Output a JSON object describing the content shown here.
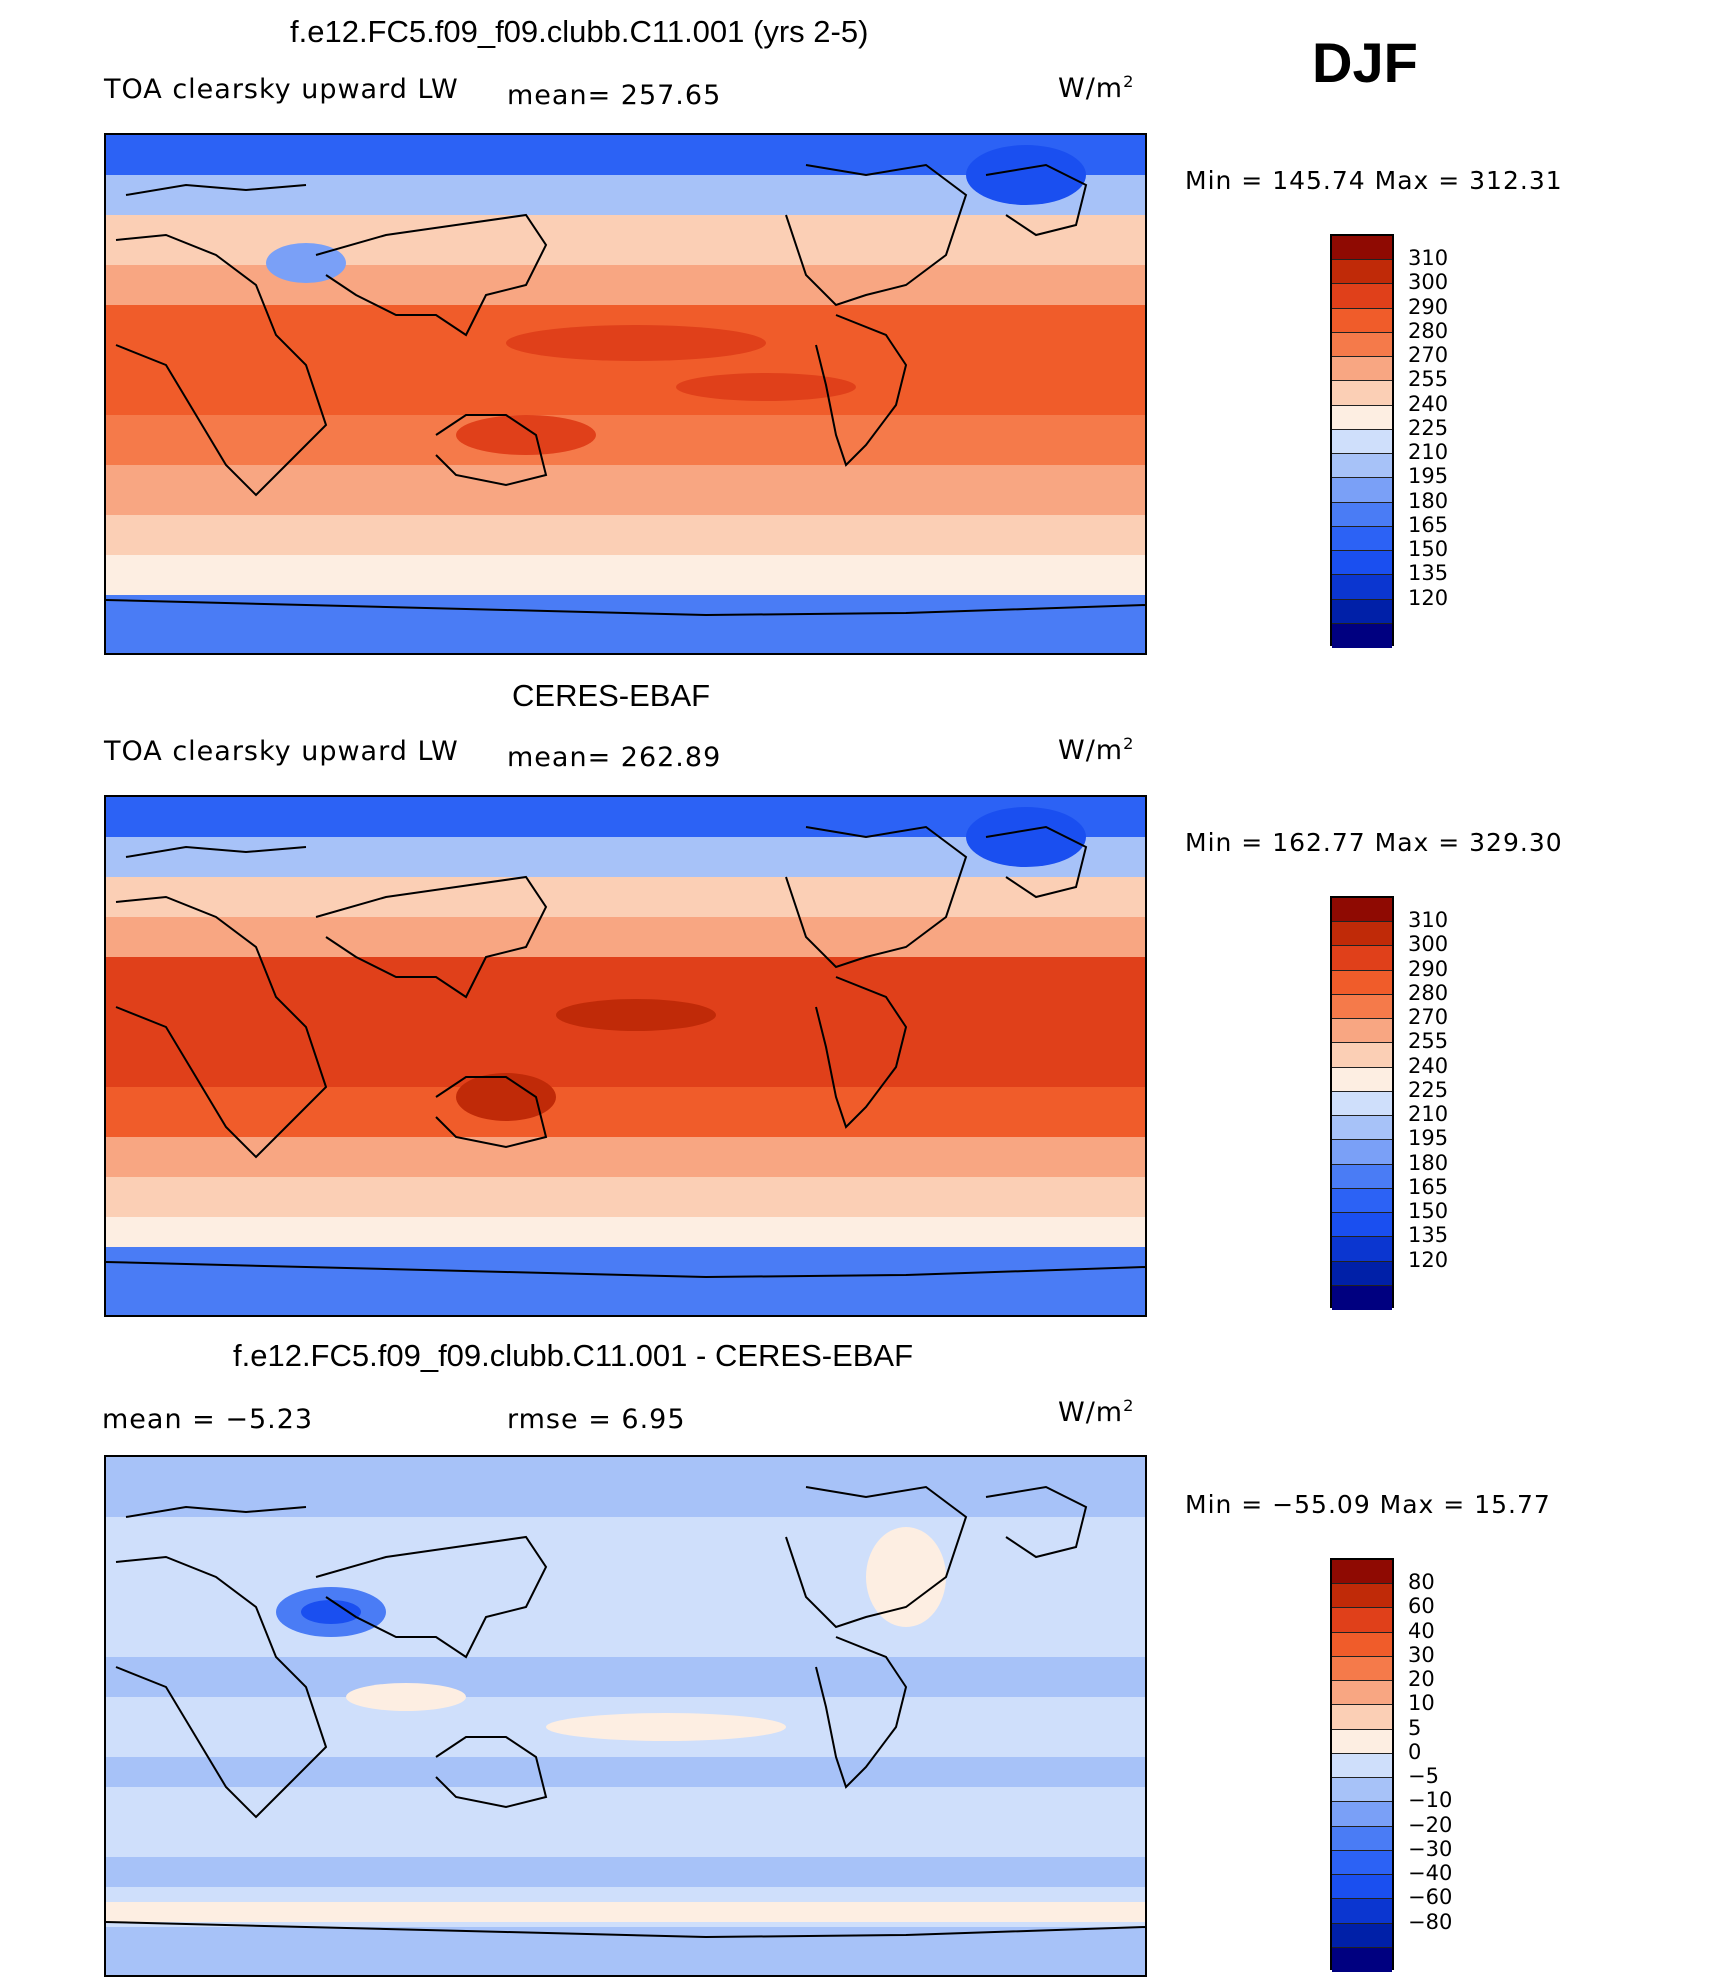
{
  "season": "DJF",
  "colors": {
    "abs_scale": [
      "#000080",
      "#0020a8",
      "#0b36d0",
      "#1a4ff0",
      "#2c62f5",
      "#4a7cf5",
      "#7aa0f7",
      "#a7c2f8",
      "#cfdffb",
      "#fdeee2",
      "#fbcfb5",
      "#f8a682",
      "#f57a4a",
      "#f05c2a",
      "#e0401a",
      "#c02a08",
      "#8f0a02"
    ],
    "diff_scale": [
      "#000080",
      "#0020a8",
      "#0b36d0",
      "#1a4ff0",
      "#2c62f5",
      "#4a7cf5",
      "#7aa0f7",
      "#a7c2f8",
      "#cfdffb",
      "#fdeee2",
      "#fbcfb5",
      "#f8a682",
      "#f57a4a",
      "#f05c2a",
      "#e0401a",
      "#c02a08",
      "#8f0a02"
    ]
  },
  "panels": [
    {
      "title": "f.e12.FC5.f09_f09.clubb.C11.001 (yrs 2-5)",
      "left_label": "TOA clearsky upward LW",
      "center_label": "mean= 257.65",
      "units": "W/m",
      "units_sup": "2",
      "minmax": "Min  =  145.74  Max  =  312.31",
      "colorbar_labels": [
        "310",
        "300",
        "290",
        "280",
        "270",
        "255",
        "240",
        "225",
        "210",
        "195",
        "180",
        "165",
        "150",
        "135",
        "120"
      ]
    },
    {
      "title": "CERES-EBAF",
      "left_label": "TOA clearsky upward LW",
      "center_label": "mean= 262.89",
      "units": "W/m",
      "units_sup": "2",
      "minmax": "Min  =  162.77  Max  =  329.30",
      "colorbar_labels": [
        "310",
        "300",
        "290",
        "280",
        "270",
        "255",
        "240",
        "225",
        "210",
        "195",
        "180",
        "165",
        "150",
        "135",
        "120"
      ]
    },
    {
      "title": "f.e12.FC5.f09_f09.clubb.C11.001 - CERES-EBAF",
      "left_label": "mean  =    −5.23",
      "center_label": "rmse  =     6.95",
      "units": "W/m",
      "units_sup": "2",
      "minmax": "Min  =  −55.09  Max  =    15.77",
      "colorbar_labels": [
        "80",
        "60",
        "40",
        "30",
        "20",
        "10",
        "5",
        "0",
        "−5",
        "−10",
        "−20",
        "−30",
        "−40",
        "−60",
        "−80"
      ]
    }
  ]
}
